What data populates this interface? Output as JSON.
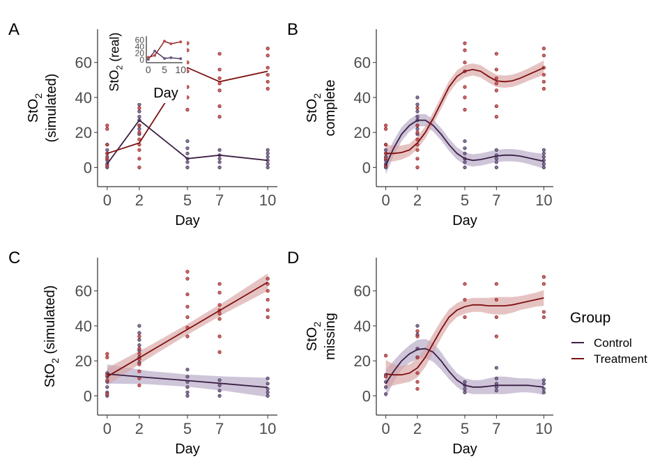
{
  "colors": {
    "control": "#3b1e45",
    "treatment": "#7d0f0f",
    "control_band": "#b3a6c4",
    "treatment_band": "#d9a3a3",
    "control_point": "#6a5b85",
    "treatment_point": "#bf4a4a",
    "axis": "#000000",
    "tick_label": "#4d4d4d"
  },
  "legend": {
    "title": "Group",
    "items": [
      {
        "label": "Control",
        "key": "control"
      },
      {
        "label": "Treatment",
        "key": "treatment"
      }
    ]
  },
  "chart_data": [
    {
      "panel": "A",
      "type": "line",
      "ylabel": [
        "StO",
        "2",
        "(simulated)"
      ],
      "xlabel": "Day",
      "x_ticks": [
        0,
        2,
        5,
        7,
        10
      ],
      "y_ticks": [
        0,
        20,
        40,
        60
      ],
      "xlim": [
        -0.6,
        10.6
      ],
      "ylim": [
        -11,
        79
      ],
      "band": false,
      "series": [
        {
          "name": "Control",
          "key": "control",
          "x": [
            0,
            2,
            5,
            7,
            10
          ],
          "y": [
            2,
            27,
            5,
            7,
            4
          ]
        },
        {
          "name": "Treatment",
          "key": "treatment",
          "x": [
            0,
            2,
            5,
            7,
            10
          ],
          "y": [
            8,
            14,
            57,
            49,
            55
          ]
        }
      ],
      "points": [
        {
          "key": "control",
          "x": 0,
          "y": [
            0,
            2,
            4,
            6,
            8,
            10,
            13
          ]
        },
        {
          "key": "treatment",
          "x": 0,
          "y": [
            1,
            5,
            8,
            13,
            22,
            24
          ]
        },
        {
          "key": "control",
          "x": 2,
          "y": [
            19,
            22,
            24,
            27,
            29,
            32,
            36,
            40
          ]
        },
        {
          "key": "treatment",
          "x": 2,
          "y": [
            0,
            5,
            10,
            13,
            16,
            20,
            24,
            34
          ]
        },
        {
          "key": "control",
          "x": 5,
          "y": [
            0,
            3,
            5,
            8,
            11,
            15
          ]
        },
        {
          "key": "treatment",
          "x": 5,
          "y": [
            33,
            40,
            46,
            55,
            60,
            67,
            71
          ]
        },
        {
          "key": "control",
          "x": 7,
          "y": [
            0,
            3,
            5,
            7,
            10
          ]
        },
        {
          "key": "treatment",
          "x": 7,
          "y": [
            29,
            35,
            44,
            48,
            51,
            56,
            65
          ]
        },
        {
          "key": "control",
          "x": 10,
          "y": [
            0,
            2,
            4,
            6,
            8,
            10
          ]
        },
        {
          "key": "treatment",
          "x": 10,
          "y": [
            45,
            49,
            53,
            57,
            64,
            68
          ]
        }
      ],
      "inset": {
        "ylabel": [
          "StO",
          "2",
          " (real)"
        ],
        "xlabel": "Day",
        "x_ticks": [
          0,
          5,
          10
        ],
        "y_ticks": [
          0,
          20,
          40,
          60
        ],
        "xlim": [
          -0.6,
          10.6
        ],
        "ylim": [
          -8,
          72
        ],
        "series": [
          {
            "name": "Control",
            "key": "control",
            "x": [
              0,
              2,
              5,
              7,
              10
            ],
            "y": [
              2,
              27,
              5,
              7,
              4
            ]
          },
          {
            "name": "Treatment",
            "key": "treatment",
            "x": [
              0,
              2,
              5,
              7,
              10
            ],
            "y": [
              8,
              14,
              57,
              49,
              55
            ]
          }
        ]
      }
    },
    {
      "panel": "B",
      "type": "line",
      "ylabel": [
        "StO",
        "2",
        "complete"
      ],
      "xlabel": "Day",
      "x_ticks": [
        0,
        2,
        5,
        7,
        10
      ],
      "y_ticks": [
        0,
        20,
        40,
        60
      ],
      "xlim": [
        -0.6,
        10.6
      ],
      "ylim": [
        -11,
        79
      ],
      "band": true,
      "series": [
        {
          "name": "Control",
          "key": "control",
          "x": [
            0,
            0.5,
            1,
            1.5,
            2,
            2.5,
            3,
            3.5,
            4,
            4.5,
            5,
            5.5,
            6,
            6.5,
            7,
            7.5,
            8,
            8.5,
            9,
            9.5,
            10
          ],
          "y": [
            1,
            11,
            19,
            24,
            27,
            27,
            24,
            19,
            13,
            8,
            5,
            4,
            4.5,
            5.5,
            6.5,
            7,
            7,
            6.5,
            5.5,
            4.5,
            3.5
          ],
          "se": [
            5,
            4.5,
            4,
            3.5,
            3.5,
            3.5,
            3.5,
            3.5,
            3.5,
            3.5,
            3.5,
            3.5,
            3.5,
            3.5,
            3.5,
            3.5,
            3.5,
            3.5,
            3.5,
            3.8,
            4.2
          ]
        },
        {
          "name": "Treatment",
          "key": "treatment",
          "x": [
            0,
            0.5,
            1,
            1.5,
            2,
            2.5,
            3,
            3.5,
            4,
            4.5,
            5,
            5.5,
            6,
            6.5,
            7,
            7.5,
            8,
            8.5,
            9,
            9.5,
            10
          ],
          "y": [
            8,
            8,
            8.5,
            10,
            14,
            20,
            28,
            37,
            46,
            52,
            55,
            56,
            55,
            52,
            49.5,
            49,
            49.5,
            51,
            53,
            55,
            57
          ],
          "se": [
            5,
            4.5,
            4,
            3.5,
            3.5,
            3.5,
            3.5,
            3.5,
            3.5,
            3.5,
            3.5,
            3.5,
            3.5,
            3.5,
            3.5,
            3.5,
            3.5,
            3.5,
            3.5,
            3.8,
            4.2
          ]
        }
      ],
      "points": [
        {
          "key": "control",
          "x": 0,
          "y": [
            0,
            2,
            4,
            6,
            8,
            10,
            13
          ]
        },
        {
          "key": "treatment",
          "x": 0,
          "y": [
            1,
            5,
            8,
            13,
            22,
            24
          ]
        },
        {
          "key": "control",
          "x": 2,
          "y": [
            19,
            22,
            24,
            27,
            29,
            32,
            36,
            40
          ]
        },
        {
          "key": "treatment",
          "x": 2,
          "y": [
            0,
            5,
            10,
            13,
            16,
            20,
            24,
            34
          ]
        },
        {
          "key": "control",
          "x": 5,
          "y": [
            0,
            3,
            5,
            8,
            11,
            15
          ]
        },
        {
          "key": "treatment",
          "x": 5,
          "y": [
            33,
            40,
            46,
            55,
            60,
            67,
            71
          ]
        },
        {
          "key": "control",
          "x": 7,
          "y": [
            0,
            3,
            5,
            7,
            10
          ]
        },
        {
          "key": "treatment",
          "x": 7,
          "y": [
            29,
            35,
            44,
            48,
            51,
            56,
            65
          ]
        },
        {
          "key": "control",
          "x": 10,
          "y": [
            0,
            2,
            4,
            6,
            8,
            10
          ]
        },
        {
          "key": "treatment",
          "x": 10,
          "y": [
            45,
            49,
            53,
            57,
            64,
            68
          ]
        }
      ]
    },
    {
      "panel": "C",
      "type": "line",
      "ylabel": [
        "StO",
        "2",
        " (simulated)"
      ],
      "xlabel": "Day",
      "x_ticks": [
        0,
        2,
        5,
        7,
        10
      ],
      "y_ticks": [
        0,
        20,
        40,
        60
      ],
      "xlim": [
        -0.6,
        10.6
      ],
      "ylim": [
        -11,
        79
      ],
      "band": true,
      "series": [
        {
          "name": "Control",
          "key": "control",
          "x": [
            0,
            2.5,
            5,
            7.5,
            10
          ],
          "y": [
            12.5,
            10.5,
            8.7,
            6.8,
            4.8
          ],
          "se": [
            5.5,
            3.8,
            3.5,
            4.2,
            5.5
          ]
        },
        {
          "name": "Treatment",
          "key": "treatment",
          "x": [
            0,
            2.5,
            5,
            7.5,
            10
          ],
          "y": [
            11,
            24.5,
            38,
            51.5,
            65
          ],
          "se": [
            5,
            3.5,
            3,
            3.5,
            5
          ]
        }
      ],
      "points": [
        {
          "key": "control",
          "x": 0,
          "y": [
            0,
            2,
            5,
            8,
            11,
            13
          ]
        },
        {
          "key": "treatment",
          "x": 0,
          "y": [
            1,
            9,
            12,
            22,
            24
          ]
        },
        {
          "key": "control",
          "x": 2,
          "y": [
            19,
            22,
            26,
            29,
            32,
            36,
            40
          ]
        },
        {
          "key": "treatment",
          "x": 2,
          "y": [
            6,
            10,
            14,
            18,
            21,
            24,
            27,
            34
          ]
        },
        {
          "key": "control",
          "x": 5,
          "y": [
            0,
            2,
            5,
            8,
            11,
            15
          ]
        },
        {
          "key": "treatment",
          "x": 5,
          "y": [
            34,
            39,
            45,
            51,
            58,
            67,
            71
          ]
        },
        {
          "key": "control",
          "x": 7,
          "y": [
            0,
            3,
            6,
            9
          ]
        },
        {
          "key": "treatment",
          "x": 7,
          "y": [
            25,
            34,
            44,
            47,
            49,
            52,
            59,
            64
          ]
        },
        {
          "key": "control",
          "x": 10,
          "y": [
            0,
            2,
            4,
            7,
            10
          ]
        },
        {
          "key": "treatment",
          "x": 10,
          "y": [
            45,
            49,
            55,
            60,
            64,
            67
          ]
        }
      ]
    },
    {
      "panel": "D",
      "type": "line",
      "ylabel": [
        "StO",
        "2",
        "missing"
      ],
      "xlabel": "Day",
      "x_ticks": [
        0,
        2,
        5,
        7,
        10
      ],
      "y_ticks": [
        0,
        20,
        40,
        60
      ],
      "xlim": [
        -0.6,
        10.6
      ],
      "ylim": [
        -11,
        79
      ],
      "band": true,
      "series": [
        {
          "name": "Control",
          "key": "control",
          "x": [
            0,
            0.5,
            1,
            1.5,
            2,
            2.5,
            3,
            3.5,
            4,
            4.5,
            5,
            5.5,
            6,
            6.5,
            7,
            7.5,
            8,
            8.5,
            9,
            9.5,
            10
          ],
          "y": [
            7,
            14,
            20,
            24,
            26.5,
            27,
            25,
            20,
            14,
            9,
            6,
            5,
            5,
            5.5,
            6,
            6,
            6,
            6,
            6,
            5.5,
            5
          ],
          "se": [
            8,
            6,
            5,
            5,
            5.5,
            5.5,
            5.5,
            5,
            4.5,
            4,
            4,
            4,
            4,
            4.5,
            5,
            5,
            4.5,
            4,
            4,
            4,
            4.5
          ]
        },
        {
          "name": "Treatment",
          "key": "treatment",
          "x": [
            0,
            0.5,
            1,
            1.5,
            2,
            2.5,
            3,
            3.5,
            4,
            4.5,
            5,
            5.5,
            6,
            6.5,
            7,
            7.5,
            8,
            8.5,
            9,
            9.5,
            10
          ],
          "y": [
            12.5,
            12,
            12,
            13,
            16,
            22,
            30,
            38,
            45,
            49,
            51,
            52,
            52,
            51.5,
            51.5,
            51.5,
            52,
            53,
            54,
            55,
            56
          ],
          "se": [
            8,
            6,
            5,
            5,
            5.5,
            5.5,
            5.5,
            5,
            4.5,
            4,
            4,
            4,
            4,
            4.5,
            5,
            5,
            4.5,
            4,
            4,
            4,
            4.5
          ]
        }
      ],
      "points": [
        {
          "key": "control",
          "x": 0,
          "y": [
            1,
            5,
            8,
            12
          ]
        },
        {
          "key": "treatment",
          "x": 0,
          "y": [
            11,
            23
          ]
        },
        {
          "key": "control",
          "x": 2,
          "y": [
            22,
            27,
            35,
            40
          ]
        },
        {
          "key": "treatment",
          "x": 2,
          "y": [
            4,
            8,
            13,
            22,
            34,
            37
          ]
        },
        {
          "key": "control",
          "x": 5,
          "y": [
            2,
            4,
            6,
            8
          ]
        },
        {
          "key": "treatment",
          "x": 5,
          "y": [
            45,
            55,
            64
          ]
        },
        {
          "key": "control",
          "x": 7,
          "y": [
            3,
            5,
            7,
            10,
            16
          ]
        },
        {
          "key": "treatment",
          "x": 7,
          "y": [
            34,
            45,
            55,
            64
          ]
        },
        {
          "key": "control",
          "x": 10,
          "y": [
            2,
            4,
            7,
            9
          ]
        },
        {
          "key": "treatment",
          "x": 10,
          "y": [
            45,
            48,
            64,
            68
          ]
        }
      ]
    }
  ]
}
